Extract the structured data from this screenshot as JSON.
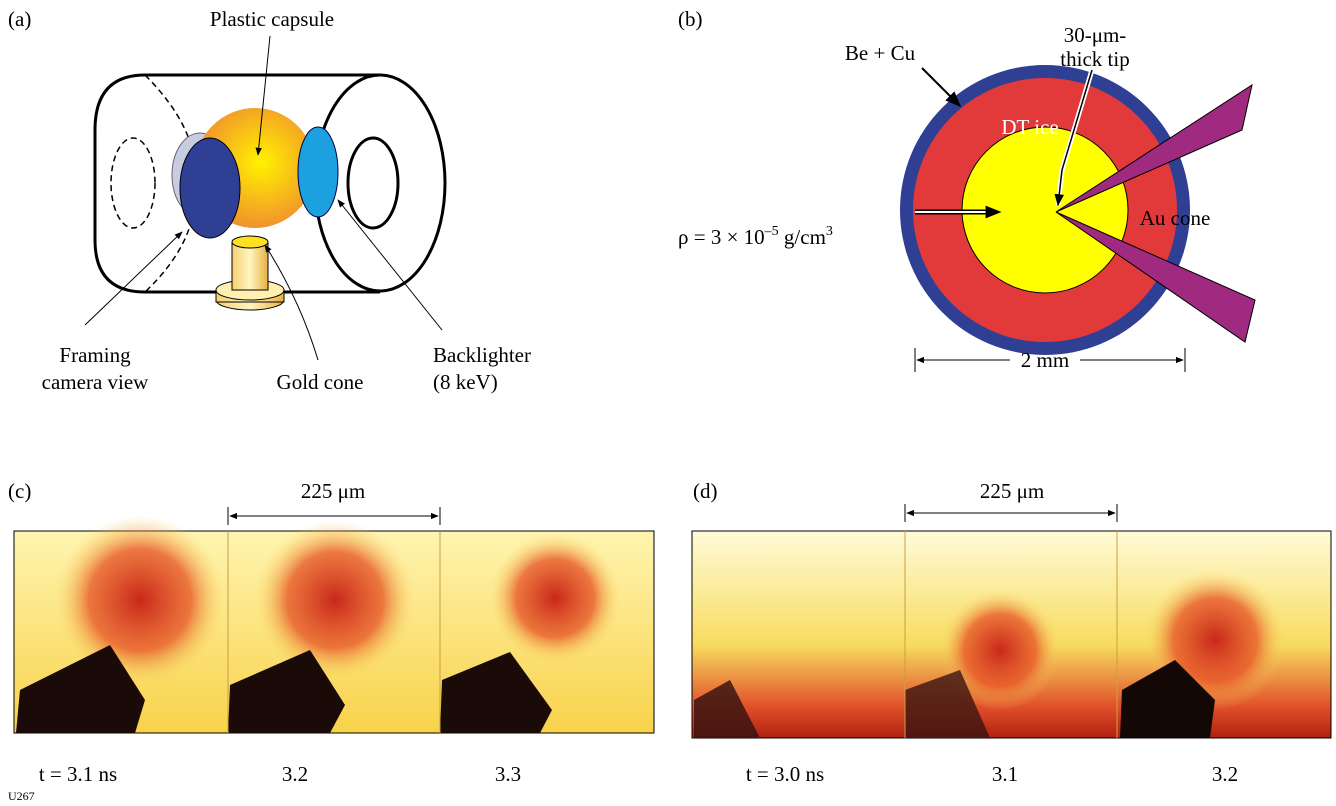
{
  "panel_a": {
    "label": "(a)",
    "capsule": "Plastic capsule",
    "camera": [
      "Framing",
      "camera view"
    ],
    "cone": "Gold cone",
    "backlighter": [
      "Backlighter",
      "(8 keV)"
    ]
  },
  "panel_b": {
    "label": "(b)",
    "shell": "Be + Cu",
    "tip": [
      "30-μm-",
      "thick tip"
    ],
    "ice": "DT ice",
    "au_cone": "Au cone",
    "density": {
      "base": "ρ = 3 × 10",
      "exp": "–5",
      "unit": " g/cm",
      "unit_exp": "3"
    },
    "diameter": "2 mm"
  },
  "panel_c": {
    "label": "(c)",
    "scale": "225 μm",
    "times": [
      "t = 3.1 ns",
      "3.2",
      "3.3"
    ]
  },
  "panel_d": {
    "label": "(d)",
    "scale": "225 μm",
    "times": [
      "t = 3.0 ns",
      "3.1",
      "3.2"
    ]
  },
  "footer": "U267"
}
